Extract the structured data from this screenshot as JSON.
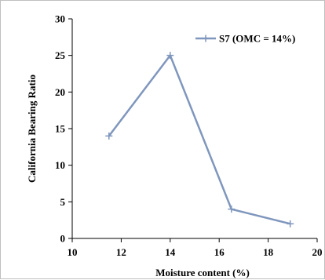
{
  "chart_data": {
    "type": "line",
    "title": "",
    "xlabel": "Moisture content (%)",
    "ylabel": "California Bearing Ratio",
    "xlim": [
      10,
      20
    ],
    "ylim": [
      0,
      30
    ],
    "xticks": [
      10,
      12,
      14,
      16,
      18,
      20
    ],
    "yticks": [
      0,
      5,
      10,
      15,
      20,
      25,
      30
    ],
    "grid": false,
    "legend_position": "top-right",
    "series": [
      {
        "name": "S7 (OMC = 14%)",
        "color": "#7f96bd",
        "marker": "plus",
        "x": [
          11.5,
          14,
          16.5,
          18.9
        ],
        "y": [
          14,
          25,
          4,
          2
        ]
      }
    ]
  }
}
